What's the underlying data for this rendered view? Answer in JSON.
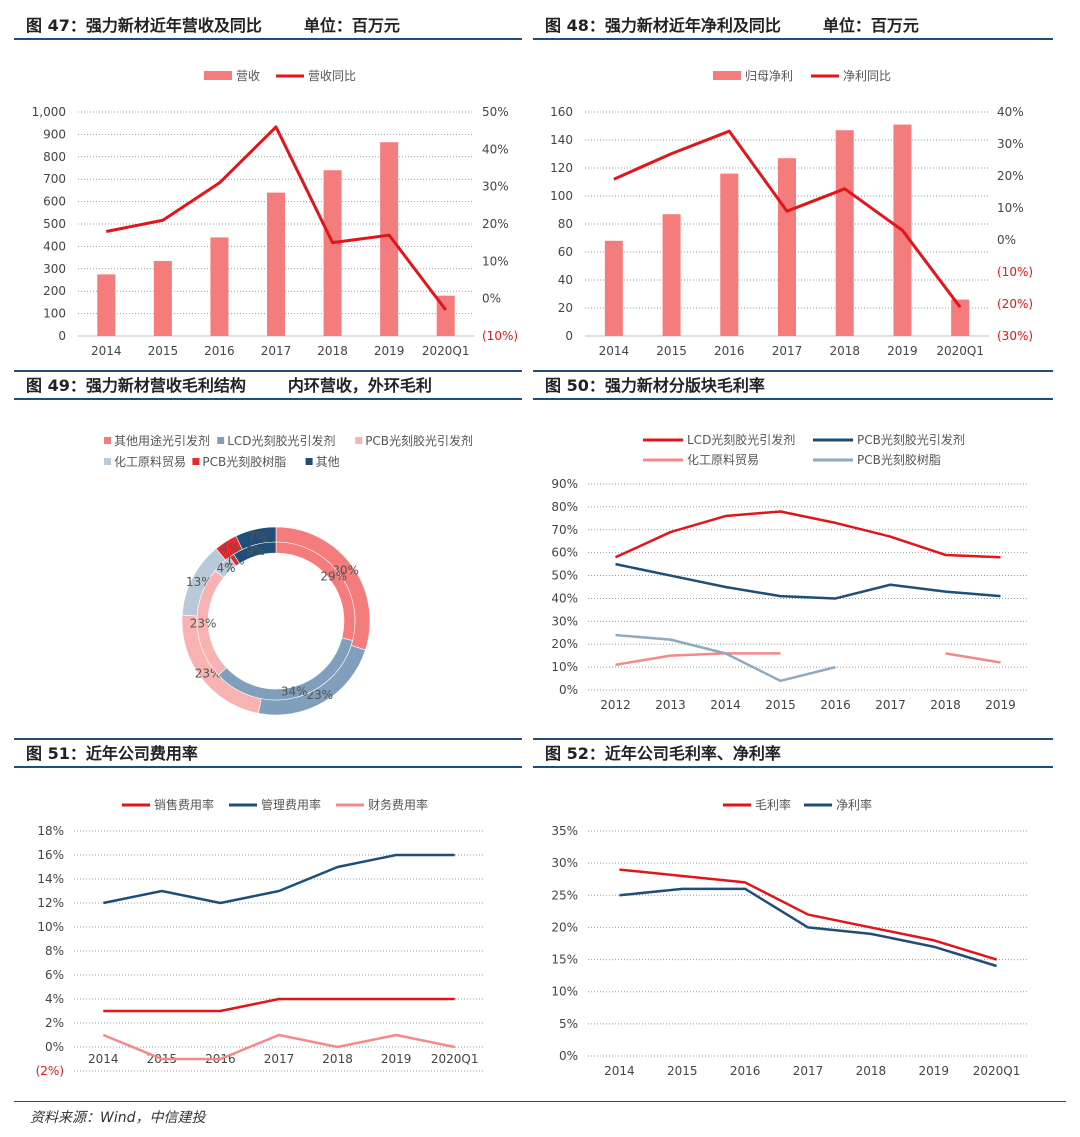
{
  "titles": {
    "fig47": "图 47：强力新材近年营收及同比",
    "fig47_unit": "单位：百万元",
    "fig48": "图 48：强力新材近年净利及同比",
    "fig48_unit": "单位：百万元",
    "fig49": "图 49：强力新材营收毛利结构",
    "fig49_unit": "内环营收，外环毛利",
    "fig50": "图 50：强力新材分版块毛利率",
    "fig51": "图 51：近年公司费用率",
    "fig52": "图 52：近年公司毛利率、净利率"
  },
  "source": "资料来源：Wind，中信建投",
  "colors": {
    "bar": "#f47c7c",
    "red": "#e0161b",
    "navy": "#1f4e79",
    "pink": "#f4898a",
    "gray": "#8fa9bf",
    "border": "#1f4e79"
  },
  "chart_data": [
    {
      "id": "fig47",
      "type": "bar",
      "categories": [
        "2014",
        "2015",
        "2016",
        "2017",
        "2018",
        "2019",
        "2020Q1"
      ],
      "series": [
        {
          "name": "营收",
          "type": "bar",
          "axis": "left",
          "values": [
            275,
            335,
            440,
            640,
            740,
            865,
            180
          ]
        },
        {
          "name": "营收同比",
          "type": "line",
          "axis": "right",
          "values": [
            18,
            21,
            31,
            46,
            15,
            17,
            -3
          ]
        }
      ],
      "y_left": {
        "min": 0,
        "max": 1000,
        "ticks": [
          "0",
          "100",
          "200",
          "300",
          "400",
          "500",
          "600",
          "700",
          "800",
          "900",
          "1,000"
        ]
      },
      "y_right": {
        "min": -10,
        "max": 50,
        "ticks": [
          "(10%)",
          "0%",
          "10%",
          "20%",
          "30%",
          "40%",
          "50%"
        ]
      },
      "legend": "top"
    },
    {
      "id": "fig48",
      "type": "bar",
      "categories": [
        "2014",
        "2015",
        "2016",
        "2017",
        "2018",
        "2019",
        "2020Q1"
      ],
      "series": [
        {
          "name": "归母净利",
          "type": "bar",
          "axis": "left",
          "values": [
            68,
            87,
            116,
            127,
            147,
            151,
            26
          ]
        },
        {
          "name": "净利同比",
          "type": "line",
          "axis": "right",
          "values": [
            19,
            27,
            34,
            9,
            16,
            3,
            -21
          ]
        }
      ],
      "y_left": {
        "min": 0,
        "max": 160,
        "ticks": [
          "0",
          "20",
          "40",
          "60",
          "80",
          "100",
          "120",
          "140",
          "160"
        ]
      },
      "y_right": {
        "min": -30,
        "max": 40,
        "ticks": [
          "(30%)",
          "(20%)",
          "(10%)",
          "0%",
          "10%",
          "20%",
          "30%",
          "40%"
        ]
      },
      "legend": "top"
    },
    {
      "id": "fig49",
      "type": "pie",
      "legend_items": [
        {
          "name": "其他用途光引发剂",
          "color": "#f47c7c"
        },
        {
          "name": "LCD光刻胶光引发剂",
          "color": "#7f9fbc"
        },
        {
          "name": "PCB光刻胶光引发剂",
          "color": "#f7b2b2"
        },
        {
          "name": "化工原料贸易",
          "color": "#b8c9d9"
        },
        {
          "name": "PCB光刻胶树脂",
          "color": "#e8282d"
        },
        {
          "name": "其他",
          "color": "#1f4e79"
        }
      ],
      "outer_ring": [
        30,
        23,
        23,
        13,
        4,
        7
      ],
      "outer_labels": [
        "30%",
        "23%",
        "23%",
        "13%",
        "4%",
        "7%"
      ],
      "inner_ring": [
        29,
        34,
        23,
        4,
        1,
        9
      ],
      "inner_labels": [
        "29%",
        "34%",
        "23%",
        "4%",
        "1%",
        "9%"
      ]
    },
    {
      "id": "fig50",
      "type": "line",
      "categories": [
        "2012",
        "2013",
        "2014",
        "2015",
        "2016",
        "2017",
        "2018",
        "2019"
      ],
      "series": [
        {
          "name": "LCD光刻胶光引发剂",
          "color": "#e0161b",
          "values": [
            58,
            69,
            76,
            78,
            73,
            67,
            59,
            58
          ]
        },
        {
          "name": "PCB光刻胶光引发剂",
          "color": "#1f4e79",
          "values": [
            55,
            50,
            45,
            41,
            40,
            46,
            43,
            41
          ]
        },
        {
          "name": "化工原料贸易",
          "color": "#f4898a",
          "values": [
            11,
            15,
            16,
            16,
            null,
            null,
            16,
            12
          ]
        },
        {
          "name": "PCB光刻胶树脂",
          "color": "#8fa9bf",
          "values": [
            24,
            22,
            16,
            4,
            10,
            null,
            null,
            null
          ]
        }
      ],
      "y": {
        "min": 0,
        "max": 90,
        "ticks": [
          "0%",
          "10%",
          "20%",
          "30%",
          "40%",
          "50%",
          "60%",
          "70%",
          "80%",
          "90%"
        ]
      },
      "legend": "top"
    },
    {
      "id": "fig51",
      "type": "line",
      "categories": [
        "2014",
        "2015",
        "2016",
        "2017",
        "2018",
        "2019",
        "2020Q1"
      ],
      "series": [
        {
          "name": "销售费用率",
          "color": "#e0161b",
          "values": [
            3,
            3,
            3,
            4,
            4,
            4,
            4
          ]
        },
        {
          "name": "管理费用率",
          "color": "#1f4e79",
          "values": [
            12,
            13,
            12,
            13,
            15,
            16,
            16
          ]
        },
        {
          "name": "财务费用率",
          "color": "#f4898a",
          "values": [
            1,
            -1,
            -1,
            1,
            0,
            1,
            0
          ]
        }
      ],
      "y": {
        "min": -2,
        "max": 18,
        "ticks": [
          "(2%)",
          "0%",
          "2%",
          "4%",
          "6%",
          "8%",
          "10%",
          "12%",
          "14%",
          "16%",
          "18%"
        ]
      },
      "legend": "top"
    },
    {
      "id": "fig52",
      "type": "line",
      "categories": [
        "2014",
        "2015",
        "2016",
        "2017",
        "2018",
        "2019",
        "2020Q1"
      ],
      "series": [
        {
          "name": "毛利率",
          "color": "#e0161b",
          "values": [
            29,
            28,
            27,
            22,
            20,
            18,
            15
          ]
        },
        {
          "name": "净利率",
          "color": "#1f4e79",
          "values": [
            25,
            26,
            26,
            20,
            19,
            17,
            14
          ]
        }
      ],
      "y": {
        "min": 0,
        "max": 35,
        "ticks": [
          "0%",
          "5%",
          "10%",
          "15%",
          "20%",
          "25%",
          "30%",
          "35%"
        ]
      },
      "legend": "top"
    }
  ]
}
